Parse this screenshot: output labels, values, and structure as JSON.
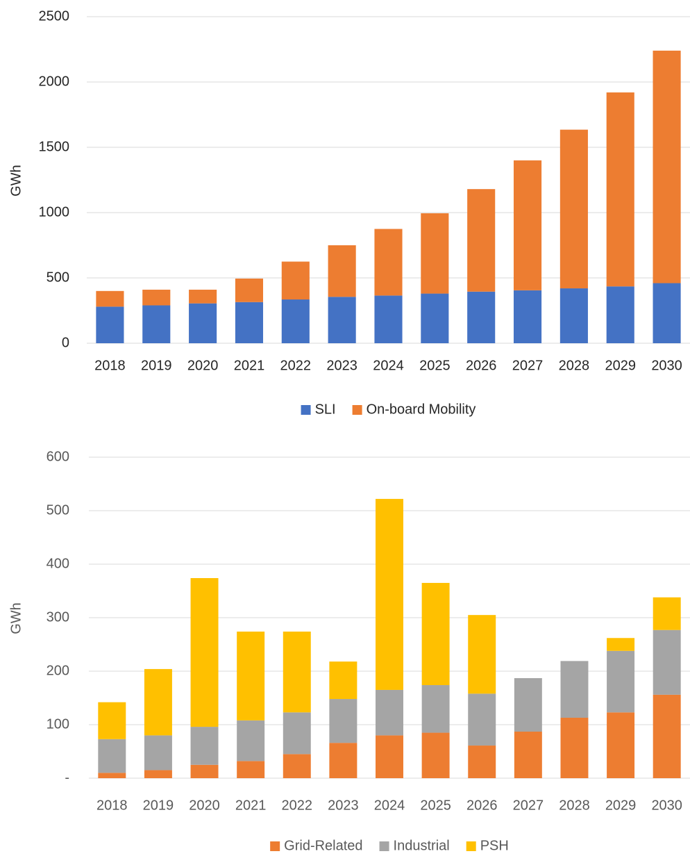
{
  "chart_data": [
    {
      "type": "bar",
      "stacked": true,
      "y_label": "GWh",
      "categories": [
        "2018",
        "2019",
        "2020",
        "2021",
        "2022",
        "2023",
        "2024",
        "2025",
        "2026",
        "2027",
        "2028",
        "2029",
        "2030"
      ],
      "series": [
        {
          "name": "SLI",
          "color": "#4472c4",
          "values": [
            280,
            290,
            305,
            315,
            335,
            355,
            365,
            380,
            395,
            405,
            420,
            435,
            460
          ]
        },
        {
          "name": "On-board Mobility",
          "color": "#ed7d31",
          "values": [
            120,
            120,
            105,
            180,
            290,
            395,
            510,
            615,
            785,
            995,
            1215,
            1485,
            1780
          ]
        }
      ],
      "ylim": [
        0,
        2500
      ],
      "yticks": [
        0,
        500,
        1000,
        1500,
        2000,
        2500
      ],
      "grid": true,
      "legend": "bottom"
    },
    {
      "type": "bar",
      "stacked": true,
      "y_label": "GWh",
      "categories": [
        "2018",
        "2019",
        "2020",
        "2021",
        "2022",
        "2023",
        "2024",
        "2025",
        "2026",
        "2027",
        "2028",
        "2029",
        "2030"
      ],
      "series": [
        {
          "name": "Grid-Related",
          "color": "#ed7d31",
          "values": [
            10,
            15,
            25,
            32,
            45,
            66,
            80,
            85,
            61,
            87,
            113,
            123,
            156
          ]
        },
        {
          "name": "Industrial",
          "color": "#a5a5a5",
          "values": [
            63,
            65,
            71,
            76,
            78,
            82,
            85,
            89,
            97,
            100,
            106,
            115,
            121
          ]
        },
        {
          "name": "PSH",
          "color": "#ffc000",
          "values": [
            69,
            124,
            278,
            166,
            151,
            70,
            357,
            191,
            147,
            0,
            0,
            24,
            61
          ]
        }
      ],
      "ylim": [
        0,
        600
      ],
      "yticks": [
        {
          "value": 0,
          "label": "-"
        },
        100,
        200,
        300,
        400,
        500,
        600
      ],
      "grid": true,
      "legend": "bottom"
    }
  ]
}
